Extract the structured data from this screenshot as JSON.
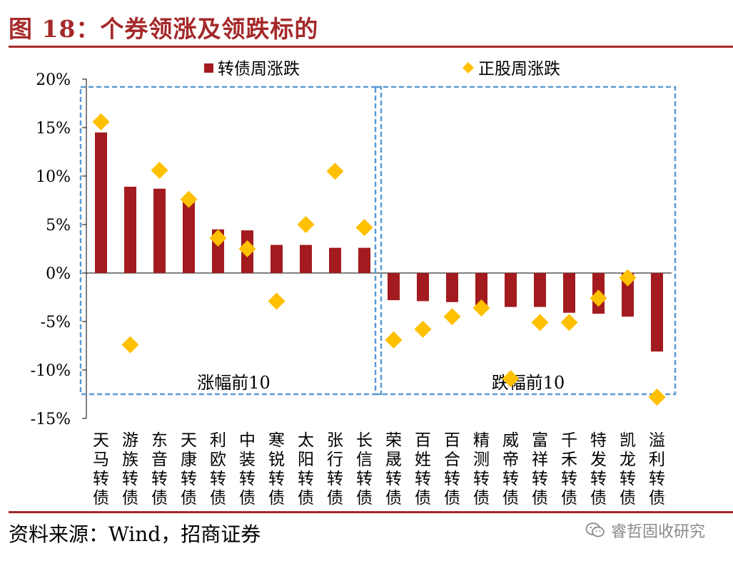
{
  "title": "图 18：个券领涨及领跌标的",
  "source": "资料来源：Wind，招商证券",
  "watermark": "睿哲固收研究",
  "colors": {
    "accent": "#a5292a",
    "bar": "#a31b1f",
    "diamond": "#ffc000",
    "box": "#5b9bd5",
    "axis": "#000000"
  },
  "icons": {
    "watermark": "wechat-icon",
    "legend_bar": "square-marker",
    "legend_diamond": "diamond-marker"
  },
  "chart_data": {
    "type": "bar",
    "title": "",
    "ylim": [
      -15,
      20
    ],
    "yticks": [
      20,
      15,
      10,
      5,
      0,
      -5,
      -10,
      -15
    ],
    "ytick_labels": [
      "20%",
      "15%",
      "10%",
      "5%",
      "0%",
      "-5%",
      "-10%",
      "-15%"
    ],
    "legend": {
      "position": "top-center",
      "entries": [
        "转债周涨跌",
        "正股周涨跌"
      ]
    },
    "categories": [
      "天马转债",
      "游族转债",
      "东音转债",
      "天康转债",
      "利欧转债",
      "中装转债",
      "寒锐转债",
      "太阳转债",
      "张行转债",
      "长信转债",
      "荣晟转债",
      "百姓转债",
      "百合转债",
      "精测转债",
      "威帝转债",
      "富祥转债",
      "千禾转债",
      "特发转债",
      "凯龙转债",
      "溢利转债"
    ],
    "series": [
      {
        "name": "转债周涨跌",
        "kind": "bar",
        "values": [
          14.5,
          8.9,
          8.7,
          7.6,
          4.5,
          4.4,
          2.9,
          2.9,
          2.6,
          2.6,
          -2.8,
          -2.9,
          -3.0,
          -3.6,
          -3.5,
          -3.5,
          -4.1,
          -4.2,
          -4.5,
          -8.1
        ]
      },
      {
        "name": "正股周涨跌",
        "kind": "diamond",
        "values": [
          15.6,
          -7.4,
          10.6,
          7.6,
          3.6,
          2.5,
          -2.9,
          5.0,
          10.5,
          4.7,
          -6.9,
          -5.8,
          -4.5,
          -3.6,
          -10.9,
          -5.1,
          -5.1,
          -2.6,
          -0.5,
          -12.8
        ]
      }
    ],
    "groups": [
      {
        "label": "涨幅前10",
        "start": 0,
        "end": 9
      },
      {
        "label": "跌幅前10",
        "start": 10,
        "end": 19
      }
    ]
  }
}
